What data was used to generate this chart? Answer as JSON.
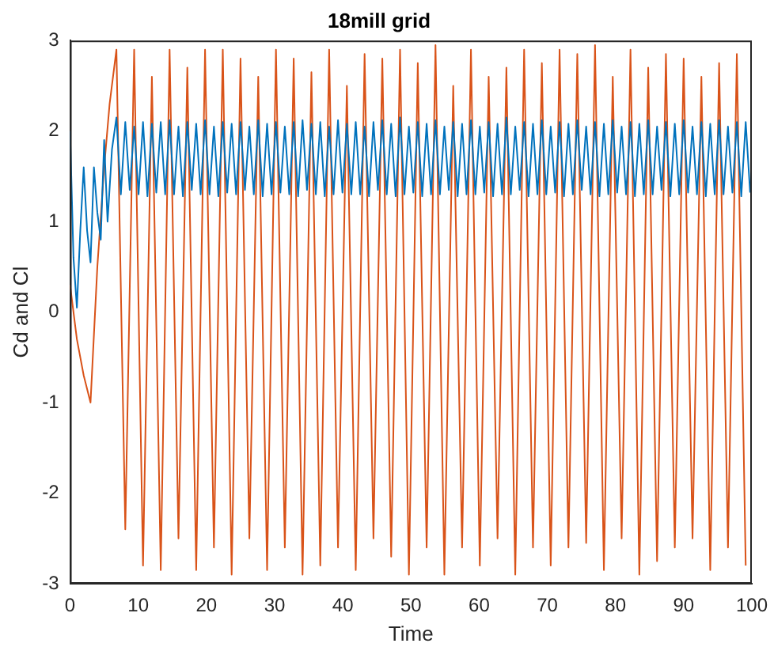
{
  "chart_data": {
    "type": "line",
    "title": "18mill grid",
    "xlabel": "Time",
    "ylabel": "Cd and Cl",
    "xlim": [
      0,
      100
    ],
    "xticks": [
      0,
      10,
      20,
      30,
      40,
      50,
      60,
      70,
      80,
      90,
      100
    ],
    "ylim": [
      -3,
      3
    ],
    "yticks": [
      -3,
      -2,
      -1,
      0,
      1,
      2,
      3
    ],
    "grid": false,
    "legend": false,
    "series": [
      {
        "color": "#0072bd",
        "x": [
          0,
          0.5,
          1,
          1.5,
          2,
          2.5,
          3,
          3.5,
          4,
          4.5,
          5,
          5.5,
          6.15,
          6.8,
          7.45,
          8.1,
          8.75,
          9.4,
          10.05,
          10.7,
          11.35,
          12.0,
          12.65,
          13.3,
          13.95,
          14.6,
          15.25,
          15.9,
          16.55,
          17.2,
          17.85,
          18.5,
          19.15,
          19.8,
          20.45,
          21.1,
          21.75,
          22.4,
          23.05,
          23.7,
          24.35,
          25.0,
          25.65,
          26.3,
          26.95,
          27.6,
          28.25,
          28.9,
          29.55,
          30.2,
          30.85,
          31.5,
          32.15,
          32.8,
          33.45,
          34.1,
          34.75,
          35.4,
          36.05,
          36.7,
          37.35,
          38.0,
          38.65,
          39.3,
          39.95,
          40.6,
          41.25,
          41.9,
          42.55,
          43.2,
          43.85,
          44.5,
          45.15,
          45.8,
          46.45,
          47.1,
          47.75,
          48.4,
          49.05,
          49.7,
          50.35,
          51.0,
          51.65,
          52.3,
          52.95,
          53.6,
          54.25,
          54.9,
          55.55,
          56.2,
          56.85,
          57.5,
          58.15,
          58.8,
          59.45,
          60.1,
          60.75,
          61.4,
          62.05,
          62.7,
          63.35,
          64.0,
          64.65,
          65.3,
          65.95,
          66.6,
          67.25,
          67.9,
          68.55,
          69.2,
          69.85,
          70.5,
          71.15,
          71.8,
          72.45,
          73.1,
          73.75,
          74.4,
          75.05,
          75.7,
          76.35,
          77.0,
          77.65,
          78.3,
          78.95,
          79.6,
          80.25,
          80.9,
          81.55,
          82.2,
          82.85,
          83.5,
          84.15,
          84.8,
          85.45,
          86.1,
          86.75,
          87.4,
          88.05,
          88.7,
          89.35,
          90.0,
          90.65,
          91.3,
          91.95,
          92.6,
          93.25,
          93.9,
          94.55,
          95.2,
          95.85,
          96.5,
          97.15,
          97.8,
          98.45,
          99.1,
          99.75
        ],
        "values": [
          2.0,
          0.6,
          0.05,
          0.9,
          1.6,
          0.9,
          0.55,
          1.6,
          1.1,
          0.8,
          1.9,
          1.0,
          1.8,
          2.15,
          1.3,
          2.1,
          1.35,
          2.05,
          1.3,
          2.1,
          1.28,
          2.08,
          1.32,
          2.1,
          1.3,
          2.12,
          1.3,
          2.05,
          1.28,
          2.1,
          1.35,
          2.08,
          1.3,
          2.12,
          1.3,
          2.05,
          1.28,
          2.1,
          1.32,
          2.08,
          1.3,
          2.1,
          1.35,
          2.05,
          1.3,
          2.12,
          1.28,
          2.08,
          1.3,
          2.1,
          1.32,
          2.05,
          1.3,
          2.1,
          1.28,
          2.12,
          1.35,
          2.08,
          1.3,
          2.1,
          1.28,
          2.05,
          1.3,
          2.12,
          1.32,
          2.08,
          1.3,
          2.1,
          1.3,
          2.05,
          1.28,
          2.1,
          1.35,
          2.12,
          1.3,
          2.08,
          1.28,
          2.15,
          1.3,
          2.05,
          1.32,
          2.1,
          1.28,
          2.08,
          1.3,
          2.12,
          1.3,
          2.05,
          1.35,
          2.1,
          1.28,
          2.08,
          1.3,
          2.12,
          1.3,
          2.05,
          1.32,
          2.1,
          1.28,
          2.08,
          1.3,
          2.15,
          1.3,
          2.05,
          1.35,
          2.1,
          1.28,
          2.08,
          1.3,
          2.12,
          1.3,
          2.05,
          1.32,
          2.1,
          1.28,
          2.08,
          1.3,
          2.12,
          1.35,
          2.05,
          1.3,
          2.1,
          1.28,
          2.08,
          1.3,
          2.12,
          1.32,
          2.05,
          1.3,
          2.1,
          1.28,
          2.08,
          1.3,
          2.12,
          1.3,
          2.05,
          1.35,
          2.1,
          1.28,
          2.08,
          1.3,
          2.12,
          1.32,
          2.05,
          1.3,
          2.1,
          1.28,
          2.08,
          1.3,
          2.12,
          1.3,
          2.05,
          1.32,
          2.1,
          1.28,
          2.1,
          1.32
        ]
      },
      {
        "color": "#d95319",
        "x": [
          0,
          1,
          2,
          3,
          4,
          5,
          5.8,
          6.8,
          8.1,
          9.4,
          10.7,
          12.0,
          13.3,
          14.6,
          15.9,
          17.2,
          18.5,
          19.8,
          21.1,
          22.4,
          23.7,
          25.0,
          26.3,
          27.6,
          28.9,
          30.2,
          31.5,
          32.8,
          34.1,
          35.4,
          36.7,
          38.0,
          39.3,
          40.6,
          41.9,
          43.2,
          44.5,
          45.8,
          47.1,
          48.4,
          49.7,
          51.0,
          52.3,
          53.6,
          54.9,
          56.2,
          57.5,
          58.8,
          60.1,
          61.4,
          62.7,
          64.0,
          65.3,
          66.6,
          67.9,
          69.2,
          70.5,
          71.8,
          73.1,
          74.4,
          75.7,
          77.0,
          78.3,
          79.6,
          80.9,
          82.2,
          83.5,
          84.8,
          86.1,
          87.4,
          88.7,
          90.0,
          91.3,
          92.6,
          93.9,
          95.2,
          96.5,
          97.8,
          99.1
        ],
        "values": [
          0.3,
          -0.3,
          -0.7,
          -1.0,
          0.5,
          1.6,
          2.3,
          2.9,
          -2.4,
          2.9,
          -2.8,
          2.6,
          -2.85,
          2.9,
          -2.5,
          2.7,
          -2.85,
          2.9,
          -2.6,
          2.9,
          -2.9,
          2.8,
          -2.5,
          2.6,
          -2.85,
          2.9,
          -2.6,
          2.8,
          -2.9,
          2.65,
          -2.8,
          2.9,
          -2.6,
          2.5,
          -2.85,
          2.85,
          -2.5,
          2.8,
          -2.7,
          2.9,
          -2.9,
          2.75,
          -2.6,
          2.95,
          -2.9,
          2.5,
          -2.6,
          2.9,
          -2.8,
          2.6,
          -2.5,
          2.7,
          -2.9,
          2.9,
          -2.6,
          2.75,
          -2.8,
          2.9,
          -2.6,
          2.85,
          -2.55,
          2.95,
          -2.85,
          2.6,
          -2.5,
          2.9,
          -2.9,
          2.7,
          -2.75,
          2.85,
          -2.6,
          2.8,
          -2.5,
          2.6,
          -2.85,
          2.75,
          -2.6,
          2.85,
          -2.8
        ]
      }
    ]
  }
}
